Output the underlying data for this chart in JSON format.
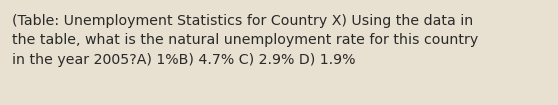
{
  "text": "(Table: Unemployment Statistics for Country X) Using the data in\nthe table, what is the natural unemployment rate for this country\nin the year 2005?A) 1%B) 4.7% C) 2.9% D) 1.9%",
  "background_color": "#e8e0d0",
  "text_color": "#2a2a2a",
  "font_size": 10.2,
  "fig_width": 5.58,
  "fig_height": 1.05,
  "dpi": 100
}
